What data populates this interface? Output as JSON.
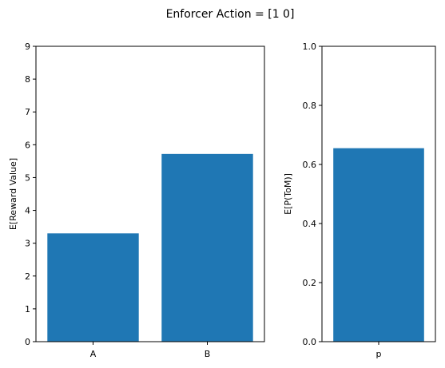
{
  "suptitle": "Enforcer Action = [1 0]",
  "colors": {
    "bar": "#1f77b4",
    "axis": "#000000"
  },
  "chart_data": [
    {
      "type": "bar",
      "categories": [
        "A",
        "B"
      ],
      "values": [
        3.3,
        5.72
      ],
      "xlabel": "",
      "ylabel": "E[Reward Value]",
      "ylim": [
        0,
        9
      ],
      "yticks": [
        0,
        1,
        2,
        3,
        4,
        5,
        6,
        7,
        8,
        9
      ],
      "ytick_labels": [
        "0",
        "1",
        "2",
        "3",
        "4",
        "5",
        "6",
        "7",
        "8",
        "9"
      ],
      "grid": false
    },
    {
      "type": "bar",
      "categories": [
        "p"
      ],
      "values": [
        0.655
      ],
      "xlabel": "",
      "ylabel": "E[P(ToM)]",
      "ylim": [
        0,
        1
      ],
      "yticks": [
        0,
        0.2,
        0.4,
        0.6,
        0.8,
        1.0
      ],
      "ytick_labels": [
        "0.0",
        "0.2",
        "0.4",
        "0.6",
        "0.8",
        "1.0"
      ],
      "grid": false
    }
  ]
}
